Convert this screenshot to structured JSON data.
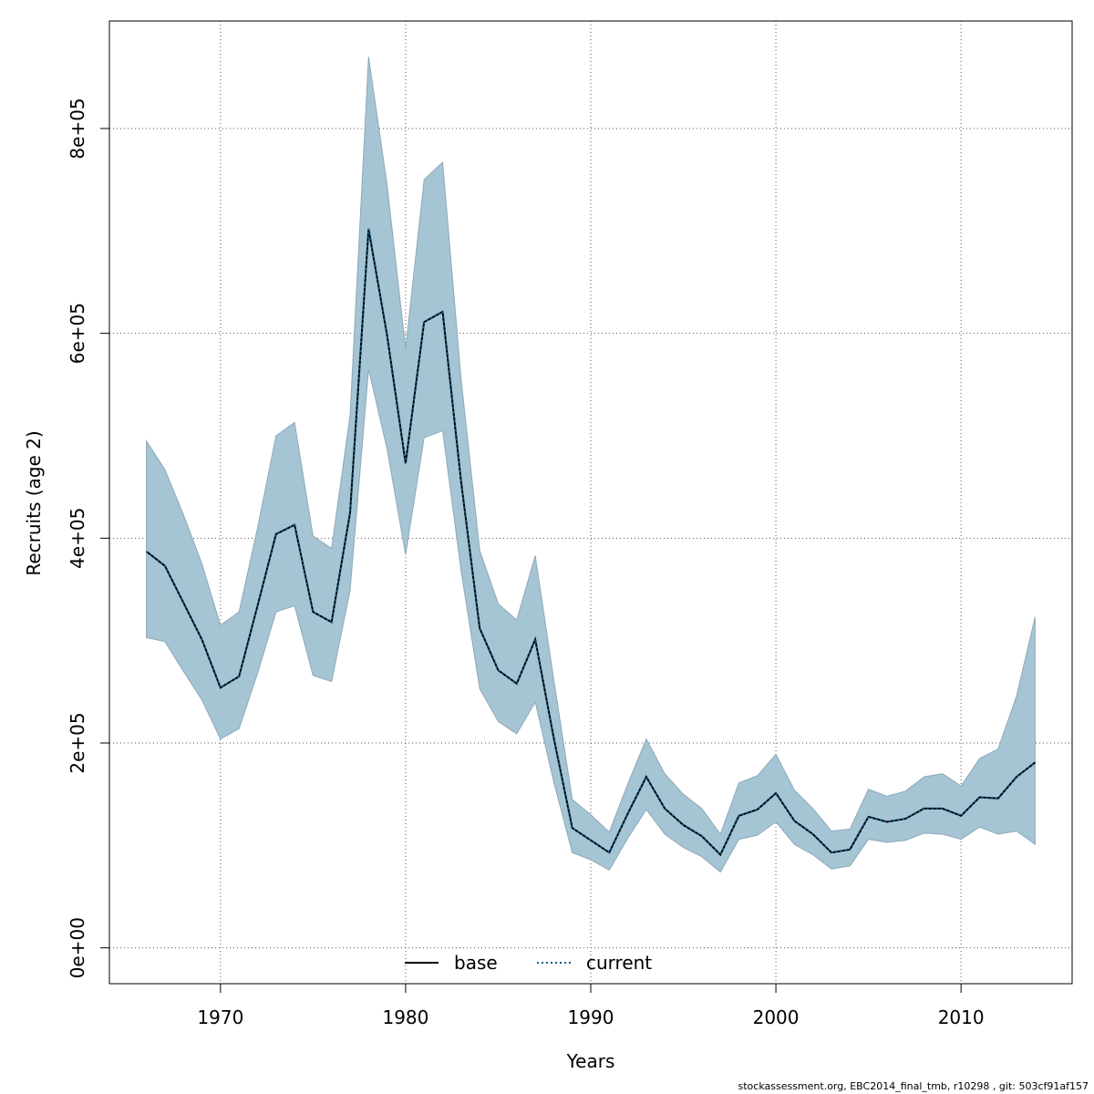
{
  "chart_data": {
    "type": "area",
    "title": "",
    "xlabel": "Years",
    "ylabel": "Recruits (age 2)",
    "xlim": [
      1964,
      2016
    ],
    "ylim": [
      -35000,
      905000
    ],
    "x_ticks": [
      1970,
      1980,
      1990,
      2000,
      2010
    ],
    "x_tick_labels": [
      "1970",
      "1980",
      "1990",
      "2000",
      "2010"
    ],
    "y_ticks": [
      0,
      200000,
      400000,
      600000,
      800000
    ],
    "y_tick_labels": [
      "0e+00",
      "2e+05",
      "4e+05",
      "6e+05",
      "8e+05"
    ],
    "grid": true,
    "legend_position": "bottom-center",
    "legend": [
      {
        "label": "base",
        "style": "solid",
        "color": "#000000"
      },
      {
        "label": "current",
        "style": "dotted",
        "color": "#0b5c8a"
      }
    ],
    "band_color": "#a5c4d4",
    "x": [
      1966,
      1967,
      1968,
      1969,
      1970,
      1971,
      1972,
      1973,
      1974,
      1975,
      1976,
      1977,
      1978,
      1979,
      1980,
      1981,
      1982,
      1983,
      1984,
      1985,
      1986,
      1987,
      1988,
      1989,
      1990,
      1991,
      1992,
      1993,
      1994,
      1995,
      1996,
      1997,
      1998,
      1999,
      2000,
      2001,
      2002,
      2003,
      2004,
      2005,
      2006,
      2007,
      2008,
      2009,
      2010,
      2011,
      2012,
      2013,
      2014
    ],
    "series": [
      {
        "name": "base",
        "values": [
          387000,
          373000,
          337000,
          301000,
          254000,
          265000,
          334000,
          404000,
          413000,
          328000,
          318000,
          425000,
          702000,
          598000,
          473000,
          611000,
          621000,
          455000,
          312000,
          271000,
          258000,
          301000,
          205000,
          117000,
          105000,
          93000,
          131000,
          167000,
          136000,
          120000,
          109000,
          91000,
          129000,
          135000,
          151000,
          124000,
          111000,
          93000,
          96000,
          128000,
          123000,
          126000,
          136000,
          136000,
          129000,
          147000,
          146000,
          167000,
          181000
        ]
      },
      {
        "name": "current",
        "values": [
          387000,
          373000,
          337000,
          301000,
          254000,
          265000,
          334000,
          404000,
          413000,
          328000,
          318000,
          425000,
          702000,
          598000,
          473000,
          611000,
          621000,
          455000,
          312000,
          271000,
          258000,
          301000,
          205000,
          117000,
          105000,
          93000,
          131000,
          167000,
          136000,
          120000,
          109000,
          91000,
          129000,
          135000,
          151000,
          124000,
          111000,
          93000,
          96000,
          128000,
          123000,
          126000,
          136000,
          136000,
          129000,
          147000,
          146000,
          167000,
          181000
        ]
      },
      {
        "name": "upper",
        "values": [
          495000,
          467000,
          423000,
          375000,
          315000,
          328000,
          410000,
          500000,
          513000,
          402000,
          390000,
          520000,
          870000,
          745000,
          585000,
          750000,
          767000,
          555000,
          388000,
          336000,
          320000,
          383000,
          262000,
          145000,
          130000,
          113000,
          160000,
          204000,
          170000,
          150000,
          136000,
          111000,
          161000,
          168000,
          189000,
          154000,
          136000,
          114000,
          116000,
          155000,
          148000,
          153000,
          167000,
          170000,
          158000,
          185000,
          194000,
          246000,
          323000
        ]
      },
      {
        "name": "lower",
        "values": [
          303000,
          299000,
          270000,
          242000,
          204000,
          214000,
          268000,
          328000,
          334000,
          266000,
          260000,
          349000,
          565000,
          487000,
          384000,
          498000,
          505000,
          368000,
          253000,
          221000,
          209000,
          240000,
          162000,
          93000,
          86000,
          76000,
          107000,
          135000,
          111000,
          98000,
          89000,
          74000,
          106000,
          110000,
          123000,
          101000,
          91000,
          77000,
          80000,
          106000,
          103000,
          105000,
          112000,
          111000,
          106000,
          118000,
          111000,
          114000,
          101000
        ]
      }
    ]
  },
  "footer_text": "stockassessment.org, EBC2014_final_tmb, r10298 , git: 503cf91af157"
}
